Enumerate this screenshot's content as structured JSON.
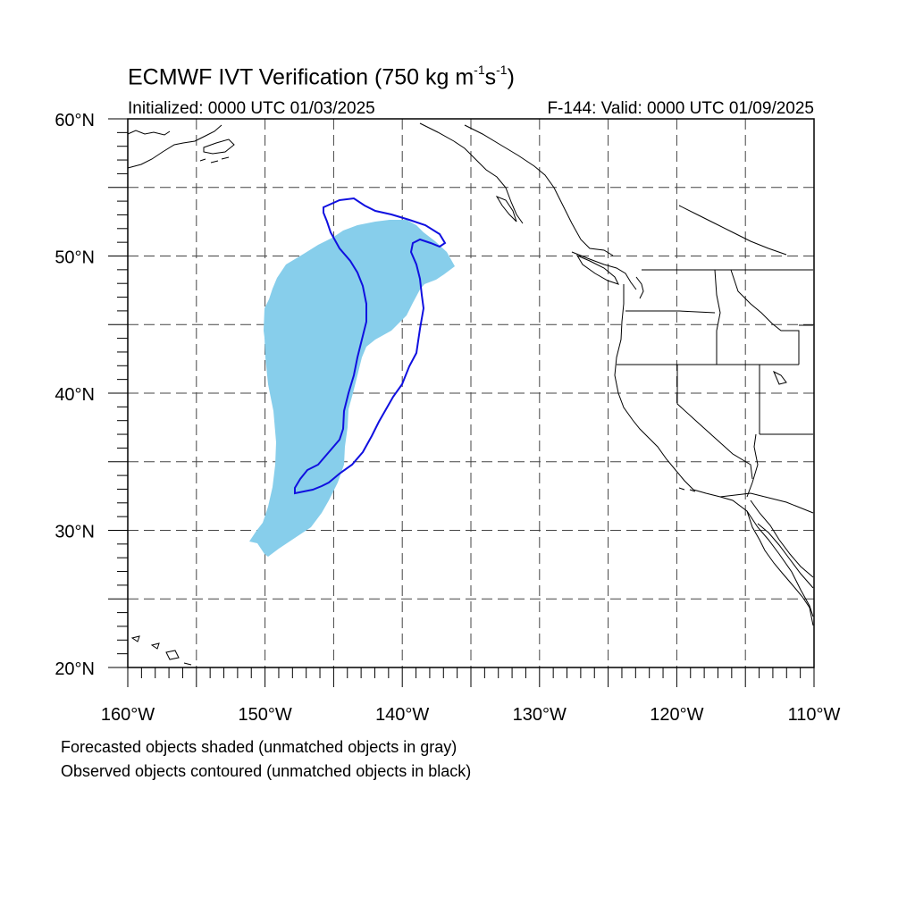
{
  "header": {
    "title_text": "ECMWF IVT Verification (750 kg m",
    "title_sup1": "-1",
    "title_mid": "s",
    "title_sup2": "-1",
    "title_end": ")",
    "initialized": "Initialized: 0000 UTC 01/03/2025",
    "valid": "F-144: Valid: 0000 UTC 01/09/2025"
  },
  "footer": {
    "note_forecast": "Forecasted objects shaded (unmatched objects in gray)",
    "note_observed": "Observed objects contoured (unmatched objects in black)"
  },
  "map": {
    "lon_range": [
      -160,
      -110
    ],
    "lat_range": [
      20,
      60
    ],
    "grid": true,
    "x_tick_labels": [
      {
        "lon": -160,
        "label": "160°W"
      },
      {
        "lon": -150,
        "label": "150°W"
      },
      {
        "lon": -140,
        "label": "140°W"
      },
      {
        "lon": -130,
        "label": "130°W"
      },
      {
        "lon": -120,
        "label": "120°W"
      },
      {
        "lon": -110,
        "label": "110°W"
      }
    ],
    "y_tick_labels": [
      {
        "lat": 60,
        "label": "60°N"
      },
      {
        "lat": 50,
        "label": "50°N"
      },
      {
        "lat": 40,
        "label": "40°N"
      },
      {
        "lat": 30,
        "label": "30°N"
      },
      {
        "lat": 20,
        "label": "20°N"
      }
    ],
    "colors": {
      "forecast_fill": "#87ceeb",
      "observed_contour": "#1010e0",
      "coast": "#000000",
      "grid": "#444444"
    }
  }
}
